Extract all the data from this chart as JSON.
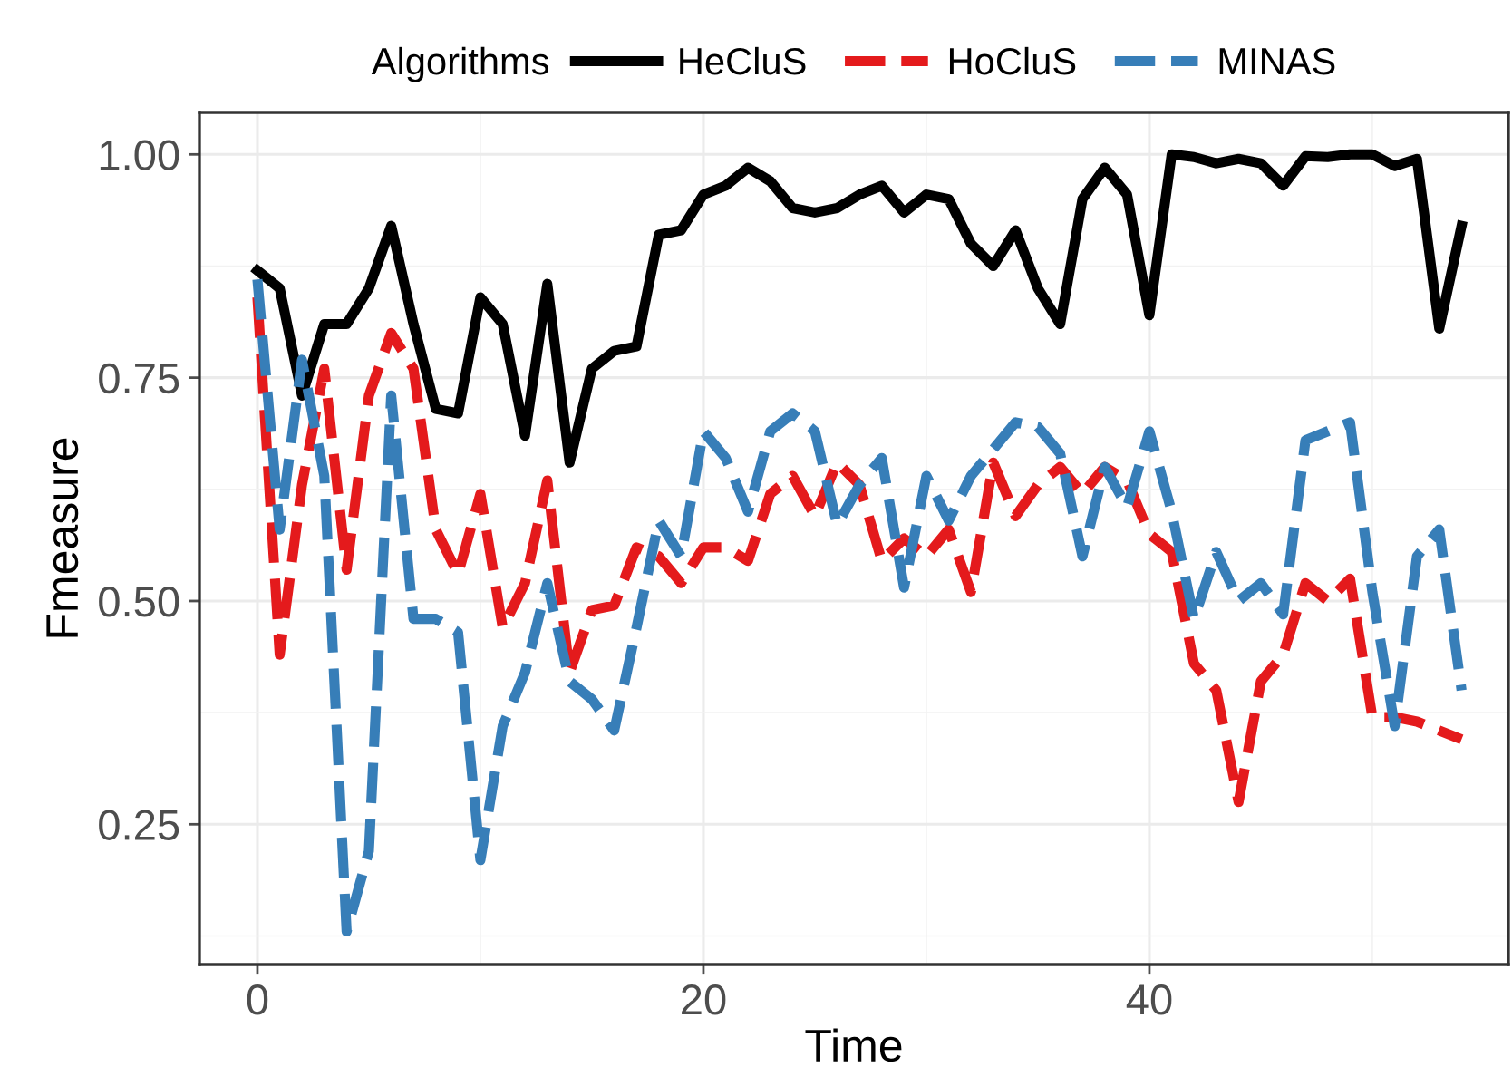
{
  "chart_data": {
    "type": "line",
    "xlabel": "Time",
    "ylabel": "Fmeasure",
    "legend_title": "Algorithms",
    "legend": "top",
    "grid": true,
    "xlim": [
      -2.6,
      56.1
    ],
    "ylim": [
      0.093,
      1.047
    ],
    "xticks": [
      0,
      20,
      40
    ],
    "yticks": [
      {
        "value": 0.25,
        "label": "0.25"
      },
      {
        "value": 0.5,
        "label": "0.50"
      },
      {
        "value": 0.75,
        "label": "0.75"
      },
      {
        "value": 1.0,
        "label": "1.00"
      }
    ],
    "x": [
      0,
      1,
      2,
      3,
      4,
      5,
      6,
      7,
      8,
      9,
      10,
      11,
      12,
      13,
      14,
      15,
      16,
      17,
      18,
      19,
      20,
      21,
      22,
      23,
      24,
      25,
      26,
      27,
      28,
      29,
      30,
      31,
      32,
      33,
      34,
      35,
      36,
      37,
      38,
      39,
      40,
      41,
      42,
      43,
      44,
      45,
      46,
      47,
      48,
      49,
      50,
      51,
      52,
      53,
      54
    ],
    "series": [
      {
        "name": "HeCluS",
        "color": "#000000",
        "line_style": "solid",
        "values": [
          0.87,
          0.85,
          0.73,
          0.81,
          0.81,
          0.85,
          0.92,
          0.81,
          0.715,
          0.71,
          0.84,
          0.81,
          0.685,
          0.855,
          0.655,
          0.76,
          0.78,
          0.785,
          0.91,
          0.915,
          0.955,
          0.965,
          0.985,
          0.97,
          0.94,
          0.935,
          0.94,
          0.955,
          0.965,
          0.935,
          0.955,
          0.95,
          0.9,
          0.875,
          0.915,
          0.85,
          0.81,
          0.95,
          0.985,
          0.955,
          0.82,
          1.0,
          0.997,
          0.99,
          0.995,
          0.99,
          0.965,
          0.998,
          0.997,
          1.0,
          1.0,
          0.987,
          0.995,
          0.805,
          0.92
        ]
      },
      {
        "name": "HoCluS",
        "color": "#e41a1c",
        "line_style": "dashed",
        "values": [
          0.84,
          0.44,
          0.63,
          0.76,
          0.535,
          0.73,
          0.8,
          0.76,
          0.58,
          0.53,
          0.62,
          0.47,
          0.52,
          0.635,
          0.42,
          0.49,
          0.495,
          0.56,
          0.55,
          0.52,
          0.56,
          0.56,
          0.545,
          0.62,
          0.64,
          0.595,
          0.655,
          0.63,
          0.545,
          0.57,
          0.55,
          0.58,
          0.51,
          0.655,
          0.595,
          0.63,
          0.65,
          0.62,
          0.65,
          0.635,
          0.575,
          0.555,
          0.43,
          0.4,
          0.275,
          0.41,
          0.44,
          0.52,
          0.5,
          0.525,
          0.37,
          0.37,
          0.365,
          0.355,
          0.345
        ]
      },
      {
        "name": "MINAS",
        "color": "#377eb8",
        "line_style": "dashed",
        "values": [
          0.86,
          0.58,
          0.77,
          0.64,
          0.13,
          0.22,
          0.73,
          0.48,
          0.48,
          0.465,
          0.21,
          0.36,
          0.42,
          0.52,
          0.41,
          0.39,
          0.355,
          0.47,
          0.59,
          0.55,
          0.69,
          0.66,
          0.6,
          0.69,
          0.71,
          0.69,
          0.585,
          0.63,
          0.66,
          0.515,
          0.64,
          0.59,
          0.64,
          0.67,
          0.7,
          0.695,
          0.665,
          0.55,
          0.65,
          0.605,
          0.69,
          0.6,
          0.48,
          0.555,
          0.5,
          0.52,
          0.485,
          0.68,
          0.69,
          0.7,
          0.51,
          0.36,
          0.55,
          0.58,
          0.4
        ]
      }
    ]
  }
}
